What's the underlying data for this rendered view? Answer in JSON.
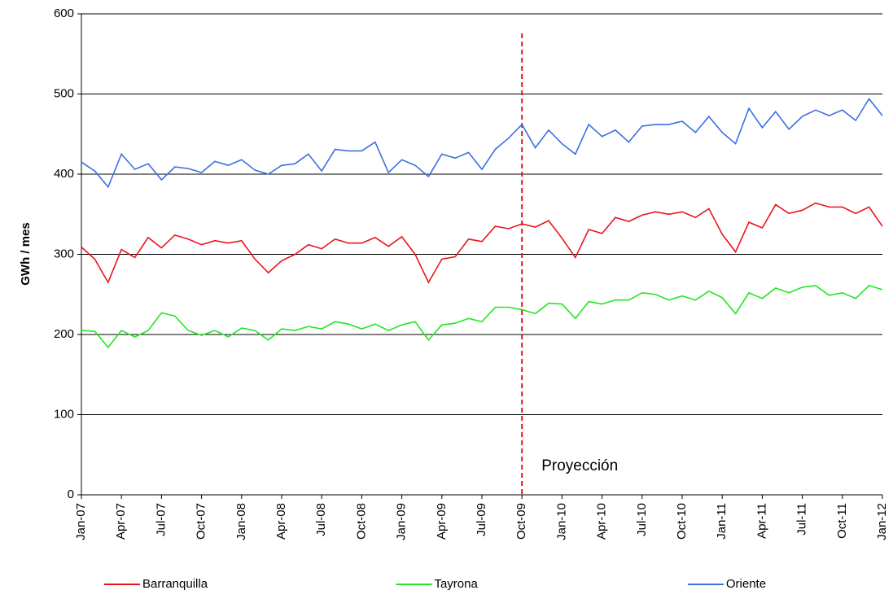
{
  "chart_data": {
    "type": "line",
    "ylabel": "GWh / mes",
    "categories": [
      "Jan-07",
      null,
      null,
      "Apr-07",
      null,
      null,
      "Jul-07",
      null,
      null,
      "Oct-07",
      null,
      null,
      "Jan-08",
      null,
      null,
      "Apr-08",
      null,
      null,
      "Jul-08",
      null,
      null,
      "Oct-08",
      null,
      null,
      "Jan-09",
      null,
      null,
      "Apr-09",
      null,
      null,
      "Jul-09",
      null,
      null,
      "Oct-09",
      null,
      null,
      "Jan-10",
      null,
      null,
      "Apr-10",
      null,
      null,
      "Jul-10",
      null,
      null,
      "Oct-10",
      null,
      null,
      "Jan-11",
      null,
      null,
      "Apr-11",
      null,
      null,
      "Jul-11",
      null,
      null,
      "Oct-11",
      null,
      null,
      "Jan-12"
    ],
    "series": [
      {
        "name": "Barranquilla",
        "color": "#e8141c",
        "values": [
          309,
          294,
          265,
          306,
          296,
          321,
          308,
          324,
          319,
          312,
          317,
          314,
          317,
          294,
          277,
          292,
          300,
          312,
          307,
          319,
          314,
          314,
          321,
          310,
          322,
          300,
          265,
          294,
          297,
          319,
          316,
          335,
          332,
          338,
          334,
          342,
          320,
          296,
          331,
          326,
          346,
          341,
          349,
          353,
          350,
          353,
          346,
          357,
          325,
          303,
          340,
          333,
          362,
          351,
          355,
          364,
          359,
          359,
          351,
          359,
          335
        ]
      },
      {
        "name": "Tayrona",
        "color": "#22e622",
        "values": [
          205,
          204,
          184,
          205,
          197,
          205,
          227,
          223,
          205,
          199,
          205,
          197,
          208,
          205,
          193,
          207,
          205,
          210,
          207,
          216,
          213,
          207,
          213,
          205,
          212,
          216,
          193,
          212,
          214,
          220,
          216,
          234,
          234,
          231,
          226,
          239,
          238,
          220,
          241,
          238,
          243,
          243,
          252,
          250,
          243,
          248,
          243,
          254,
          246,
          226,
          252,
          245,
          258,
          252,
          259,
          261,
          249,
          252,
          245,
          261,
          256
        ]
      },
      {
        "name": "Oriente",
        "color": "#3a6fe0",
        "values": [
          415,
          404,
          384,
          425,
          406,
          413,
          393,
          409,
          407,
          402,
          416,
          411,
          418,
          405,
          400,
          411,
          413,
          425,
          404,
          431,
          429,
          429,
          440,
          402,
          418,
          411,
          397,
          425,
          420,
          427,
          406,
          431,
          445,
          462,
          433,
          455,
          438,
          425,
          462,
          447,
          455,
          440,
          460,
          462,
          462,
          466,
          452,
          472,
          452,
          438,
          482,
          458,
          478,
          456,
          472,
          480,
          473,
          480,
          467,
          494,
          473
        ]
      }
    ],
    "ylim": [
      0,
      600
    ],
    "yticks": [
      0,
      100,
      200,
      300,
      400,
      500,
      600
    ],
    "grid": true,
    "legend": "bottom",
    "annotation": {
      "text": "Proyección",
      "x": "Oct-09",
      "color": "#e8141c"
    }
  }
}
